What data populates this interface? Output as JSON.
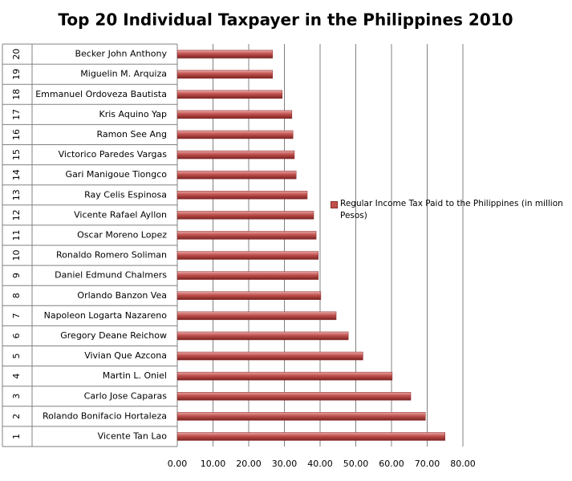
{
  "chart_data": {
    "type": "bar",
    "orientation": "horizontal",
    "title": "Top 20 Individual Taxpayer in the Philippines 2010",
    "ranks": [
      1,
      2,
      3,
      4,
      5,
      6,
      7,
      8,
      9,
      10,
      11,
      12,
      13,
      14,
      15,
      16,
      17,
      18,
      19,
      20
    ],
    "categories": [
      "Vicente Tan Lao",
      "Rolando Bonifacio Hortaleza",
      "Carlo Jose Caparas",
      "Martin L. Oniel",
      "Vivian Que Azcona",
      "Gregory Deane Reichow",
      "Napoleon Logarta Nazareno",
      "Orlando Banzon Vea",
      "Daniel Edmund Chalmers",
      "Ronaldo Romero Soliman",
      "Oscar Moreno Lopez",
      "Vicente Rafael Ayllon",
      "Ray Celis Espinosa",
      "Gari Manigoue Tiongco",
      "Victorico Paredes Vargas",
      "Ramon See Ang",
      "Kris Aquino Yap",
      "Emmanuel Ordoveza Bautista",
      "Miguelin M. Arquiza",
      "Becker John Anthony"
    ],
    "series": [
      {
        "name": "Regular Income Tax Paid to the Philippines (in million Pesos)",
        "color": "#c0504d",
        "values": [
          75,
          69.5,
          65.4,
          60.2,
          52,
          47.9,
          44.5,
          40.2,
          39.5,
          39.5,
          38.9,
          38.2,
          36.4,
          33.3,
          32.8,
          32.4,
          32.1,
          29.4,
          26.7,
          26.7
        ]
      }
    ],
    "xlim": [
      0,
      80
    ],
    "xticks": [
      {
        "value": 0,
        "label": "0.00"
      },
      {
        "value": 10,
        "label": "10.00"
      },
      {
        "value": 20,
        "label": "20.00"
      },
      {
        "value": 30,
        "label": "30.00"
      },
      {
        "value": 40,
        "label": "40.00"
      },
      {
        "value": 50,
        "label": "50.00"
      },
      {
        "value": 60,
        "label": "60.00"
      },
      {
        "value": 70,
        "label": "70.00"
      },
      {
        "value": 80,
        "label": "80.00"
      }
    ],
    "grid": true,
    "legend": "right"
  }
}
